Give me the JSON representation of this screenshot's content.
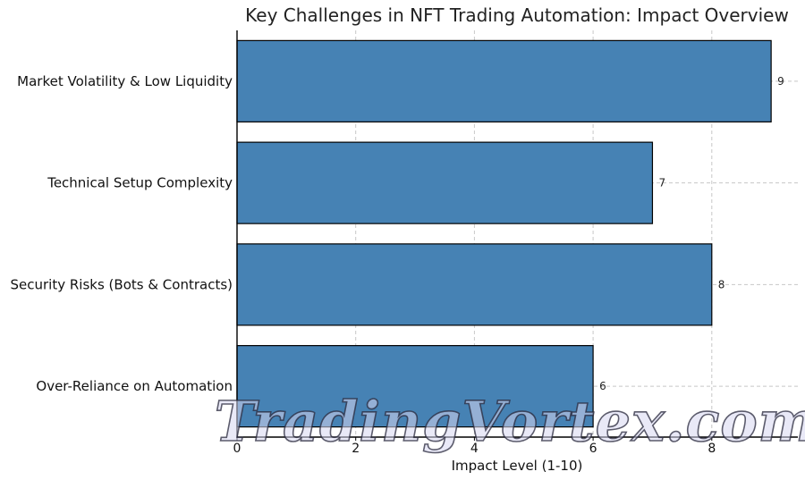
{
  "chart_data": {
    "type": "bar",
    "orientation": "horizontal",
    "title": "Key Challenges in NFT Trading Automation: Impact Overview",
    "xlabel": "Impact Level (1-10)",
    "ylabel": "",
    "categories": [
      "Market Volatility & Low Liquidity",
      "Technical Setup Complexity",
      "Security Risks (Bots & Contracts)",
      "Over-Reliance on Automation"
    ],
    "values": [
      9,
      7,
      8,
      6
    ],
    "xlim": [
      0,
      9.45
    ],
    "xticks": [
      "0",
      "2",
      "4",
      "6",
      "8"
    ],
    "grid": true,
    "bar_color": "#4682B4"
  },
  "watermark": "TradingVortex.com"
}
